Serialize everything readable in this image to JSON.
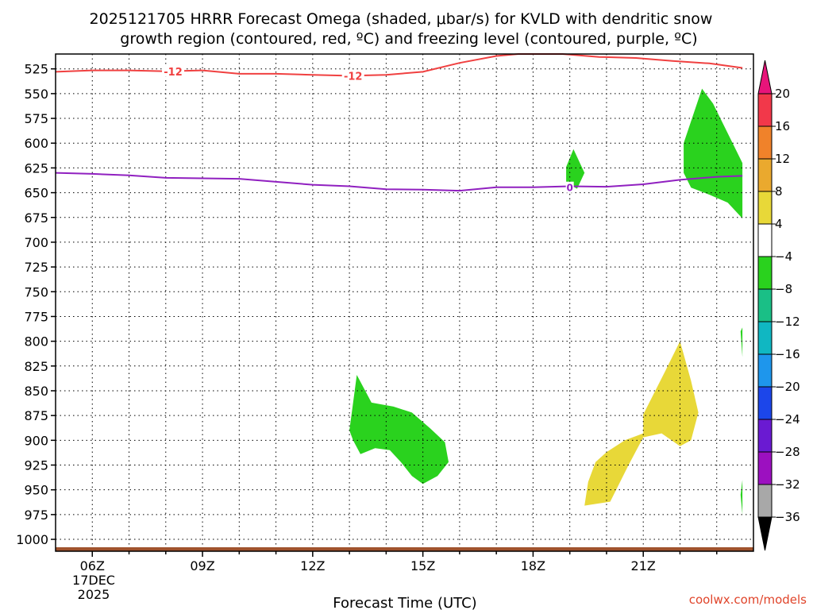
{
  "chart_data": {
    "type": "time-height cross-section",
    "title_line1": "2025121705 HRRR Forecast Omega (shaded, μbar/s) for KVLD with dendritic snow",
    "title_line2": "growth region (contoured, red, ºC) and freezing level (contoured, purple, ºC)",
    "xlabel": "Forecast Time (UTC)",
    "credit": "coolwx.com/models",
    "date_label_day": "17DEC",
    "date_label_year": "2025",
    "xlim": [
      5,
      24
    ],
    "ylim": [
      1012,
      510
    ],
    "y_ticks": [
      525,
      550,
      575,
      600,
      625,
      650,
      675,
      700,
      725,
      750,
      775,
      800,
      825,
      850,
      875,
      900,
      925,
      950,
      975,
      1000
    ],
    "x_ticks": [
      {
        "hour": 6,
        "label": "06Z"
      },
      {
        "hour": 9,
        "label": "09Z"
      },
      {
        "hour": 12,
        "label": "12Z"
      },
      {
        "hour": 15,
        "label": "15Z"
      },
      {
        "hour": 18,
        "label": "18Z"
      },
      {
        "hour": 21,
        "label": "21Z"
      }
    ],
    "grid": true,
    "legend_position": "right",
    "colorbar": {
      "levels": [
        20,
        16,
        12,
        8,
        4,
        -4,
        -8,
        -12,
        -16,
        -20,
        -24,
        -28,
        -32,
        -36
      ],
      "colors": [
        "#f2384a",
        "#f0822a",
        "#eaa92e",
        "#e8d838",
        "#ffffff",
        "#2ad21e",
        "#1abf86",
        "#10b7c2",
        "#1e96ec",
        "#1c46ea",
        "#6a1ad2",
        "#9c10c0",
        "#a8a8a8"
      ],
      "top_arrow_color": "#e8147a",
      "bottom_arrow_color": "#000000"
    },
    "colors": {
      "dendritic_contour": "#f04040",
      "freezing_contour": "#9020c0",
      "terrain": "#a0522d"
    },
    "dendritic_contour": {
      "label": "-12",
      "points": [
        [
          5,
          528
        ],
        [
          6,
          526.5
        ],
        [
          7,
          526.5
        ],
        [
          8,
          527.5
        ],
        [
          9,
          526.5
        ],
        [
          10,
          530
        ],
        [
          11,
          530
        ],
        [
          12,
          531
        ],
        [
          13,
          532
        ],
        [
          14,
          531
        ],
        [
          15,
          528
        ],
        [
          16,
          519
        ],
        [
          17,
          512
        ],
        [
          17.6,
          510
        ],
        [
          18.8,
          510
        ],
        [
          19.8,
          513
        ],
        [
          20.8,
          514
        ],
        [
          21.8,
          517
        ],
        [
          22.8,
          519.5
        ],
        [
          23.7,
          524
        ]
      ],
      "labels_at": [
        [
          8.2,
          527.5
        ],
        [
          13.1,
          532
        ]
      ]
    },
    "freezing_contour": {
      "label": "0",
      "points": [
        [
          5,
          630
        ],
        [
          6,
          631
        ],
        [
          7,
          632.5
        ],
        [
          8,
          635
        ],
        [
          10,
          636
        ],
        [
          11,
          639
        ],
        [
          12,
          642
        ],
        [
          13,
          643.5
        ],
        [
          14,
          646.5
        ],
        [
          15,
          647
        ],
        [
          16,
          648
        ],
        [
          17,
          644.5
        ],
        [
          18,
          644.5
        ],
        [
          19,
          643.5
        ],
        [
          20,
          644
        ],
        [
          21,
          641.5
        ],
        [
          22,
          637
        ],
        [
          23,
          634
        ],
        [
          23.7,
          633
        ]
      ],
      "labels_at": [
        [
          19,
          644.5
        ]
      ]
    },
    "omega_regions": [
      {
        "level": -4,
        "points": [
          [
            13.0,
            890
          ],
          [
            13.2,
            834
          ],
          [
            13.6,
            862
          ],
          [
            14.2,
            866
          ],
          [
            14.7,
            872
          ],
          [
            15.2,
            888
          ],
          [
            15.6,
            902
          ],
          [
            15.7,
            922
          ],
          [
            15.4,
            936
          ],
          [
            15.0,
            944
          ],
          [
            14.7,
            936
          ],
          [
            14.4,
            922
          ],
          [
            14.1,
            910
          ],
          [
            13.7,
            908
          ],
          [
            13.3,
            914
          ],
          [
            13.1,
            900
          ]
        ]
      },
      {
        "level": -4,
        "points": [
          [
            18.9,
            624
          ],
          [
            19.1,
            606
          ],
          [
            19.4,
            630
          ],
          [
            19.2,
            646
          ],
          [
            18.9,
            640
          ]
        ]
      },
      {
        "level": -4,
        "points": [
          [
            22.1,
            600
          ],
          [
            22.6,
            545
          ],
          [
            22.9,
            560
          ],
          [
            23.3,
            590
          ],
          [
            23.7,
            620
          ],
          [
            23.7,
            676
          ],
          [
            23.3,
            660
          ],
          [
            22.8,
            652
          ],
          [
            22.3,
            645
          ],
          [
            22.1,
            630
          ]
        ]
      },
      {
        "level": -4,
        "points": [
          [
            23.65,
            790
          ],
          [
            23.7,
            786
          ],
          [
            23.7,
            816
          ]
        ]
      },
      {
        "level": -4,
        "points": [
          [
            23.65,
            955
          ],
          [
            23.7,
            940
          ],
          [
            23.7,
            975
          ]
        ]
      },
      {
        "level": 4,
        "points": [
          [
            19.5,
            942
          ],
          [
            19.7,
            922
          ],
          [
            20.0,
            912
          ],
          [
            20.5,
            900
          ],
          [
            21.0,
            893
          ],
          [
            21.0,
            874
          ],
          [
            21.6,
            830
          ],
          [
            22.0,
            800
          ],
          [
            22.3,
            840
          ],
          [
            22.5,
            872
          ],
          [
            22.3,
            900
          ],
          [
            22.0,
            906
          ],
          [
            21.5,
            893
          ],
          [
            21.0,
            897
          ],
          [
            20.6,
            925
          ],
          [
            20.1,
            962
          ],
          [
            19.4,
            966
          ]
        ]
      }
    ],
    "terrain_top_pressure": 1008
  }
}
